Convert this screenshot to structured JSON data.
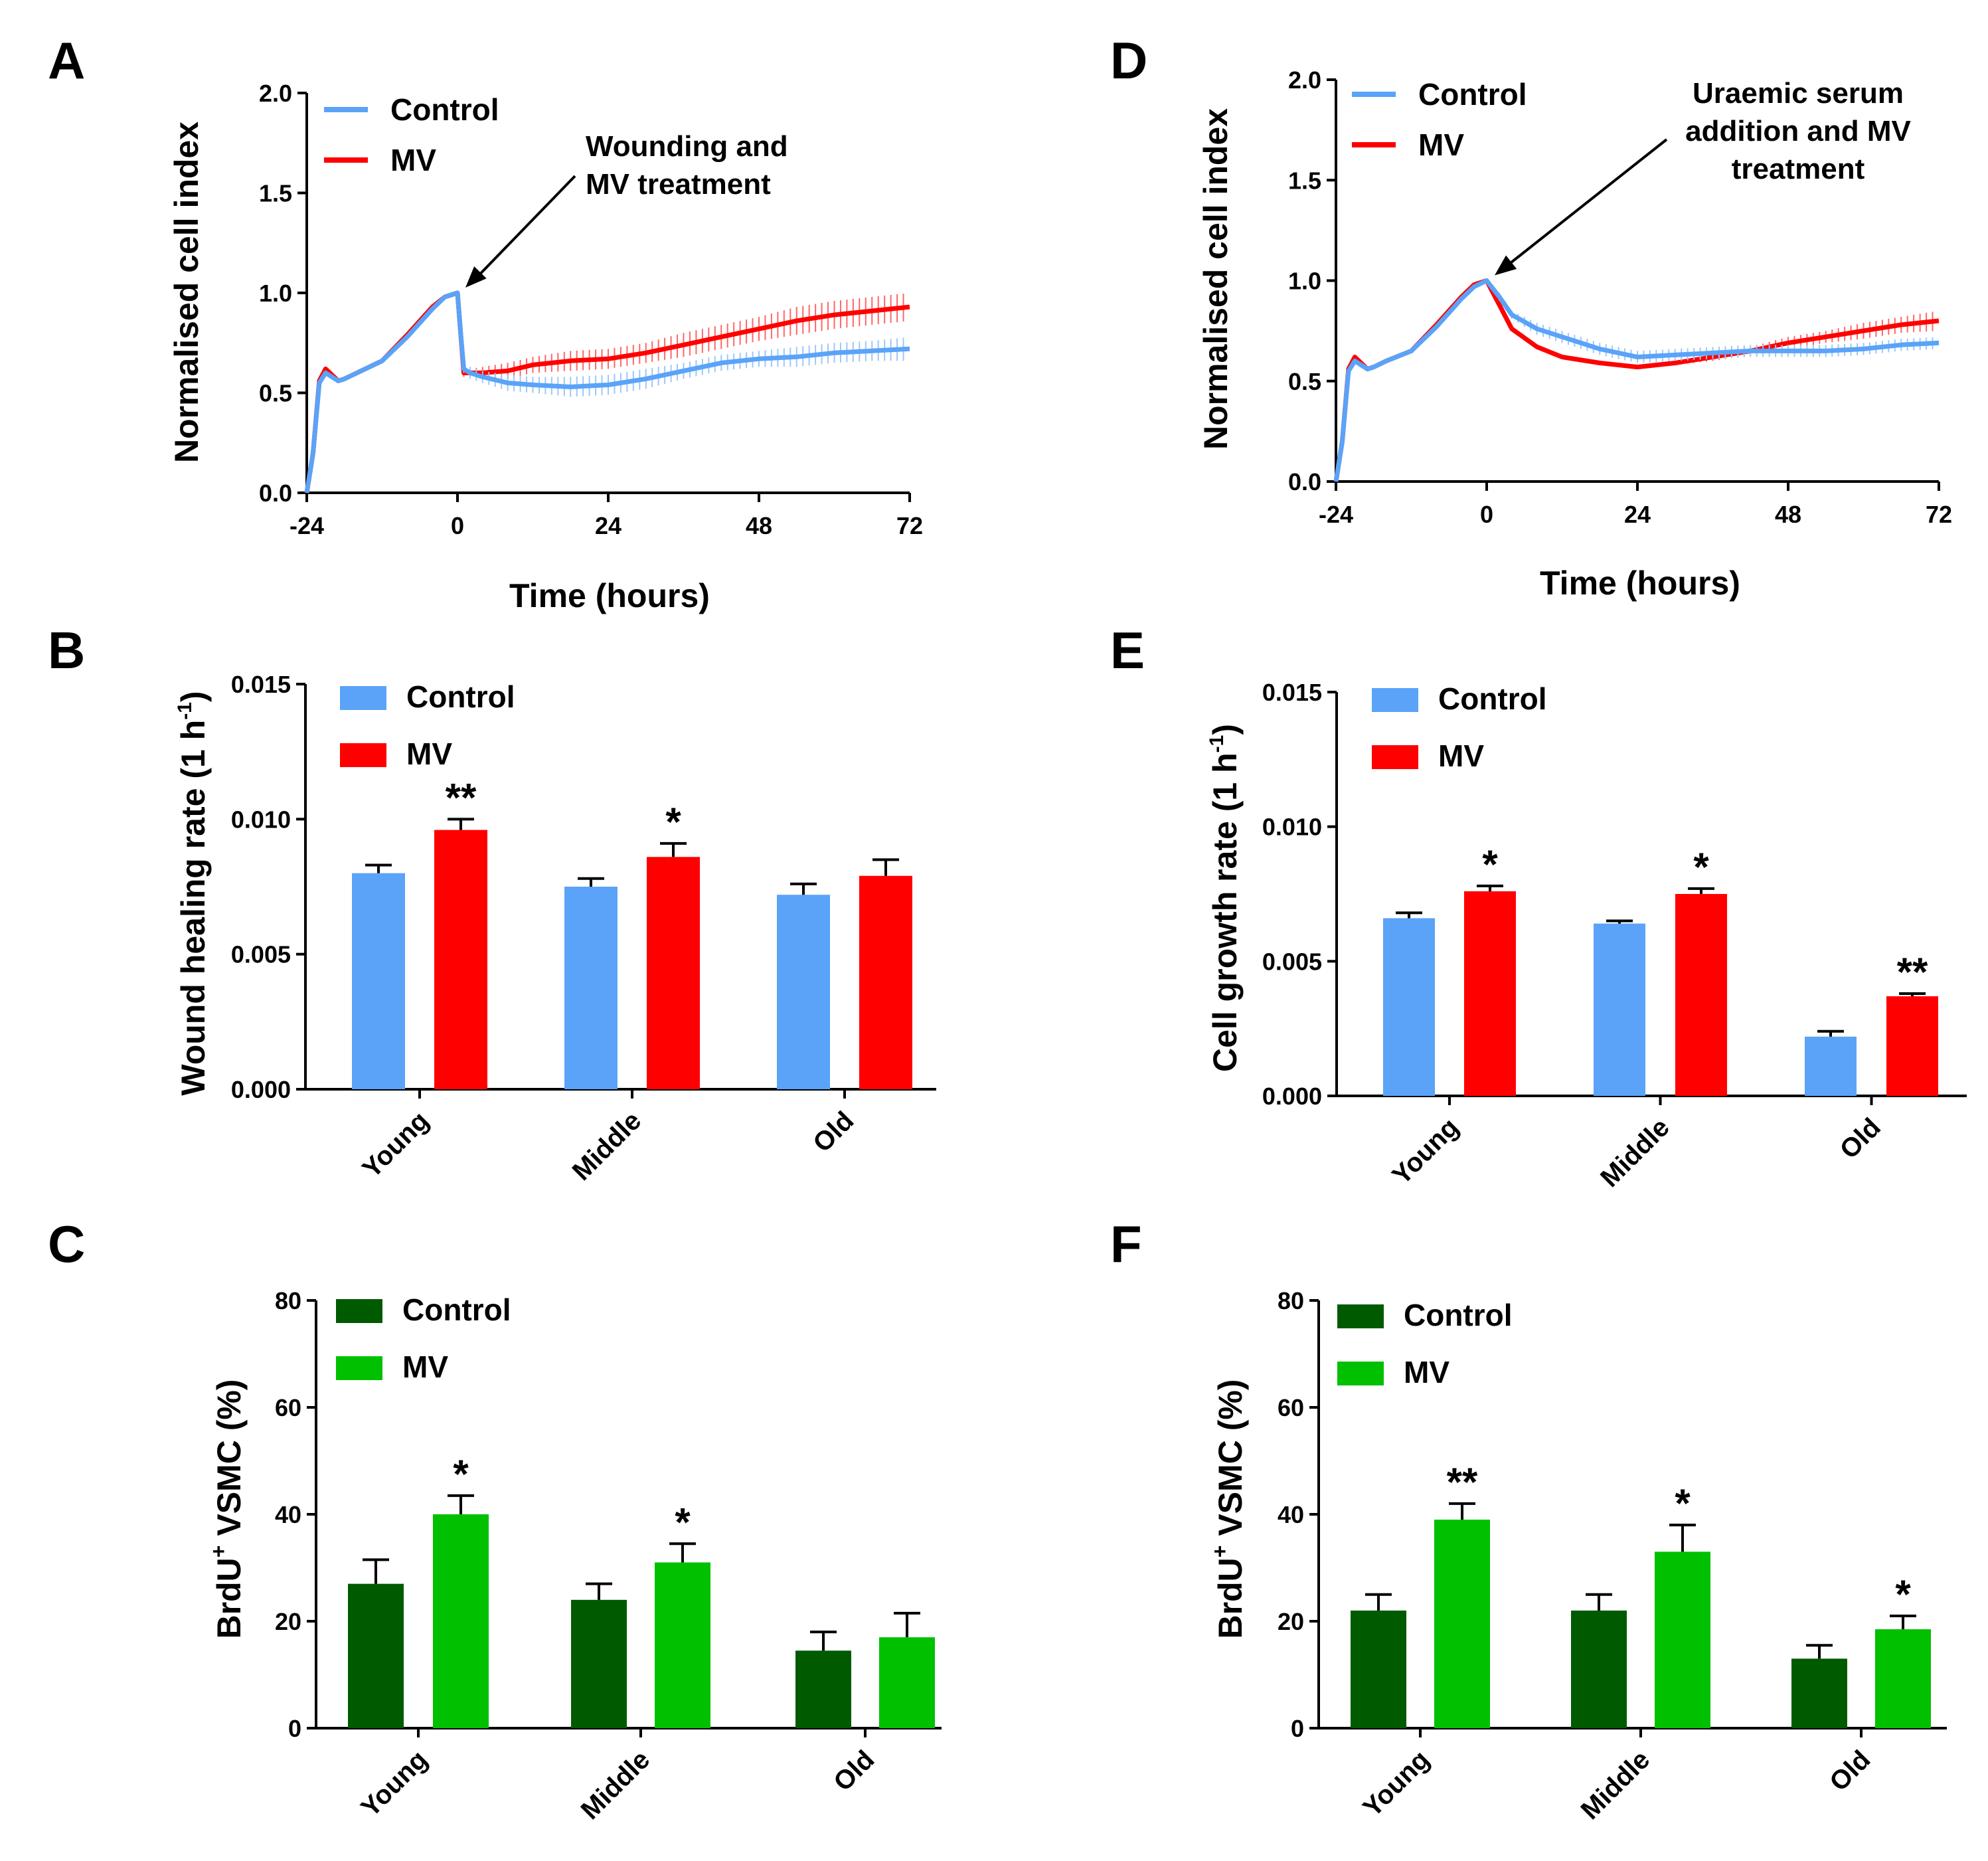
{
  "colors": {
    "control_line": "#5aa3f8",
    "mv_line": "#ff0000",
    "control_bar_blue": "#5aa3f8",
    "mv_bar_red": "#ff0000",
    "control_bar_green": "#005a00",
    "mv_bar_green": "#00c000"
  },
  "chart_data": [
    {
      "id": "A",
      "panel_label": "A",
      "type": "line",
      "title": "",
      "xlabel": "Time (hours)",
      "ylabel": "Normalised cell index",
      "xlim": [
        -24,
        72
      ],
      "ylim": [
        0,
        2.0
      ],
      "xticks": [
        -24,
        0,
        24,
        48,
        72
      ],
      "xtick_labels": [
        "-24",
        "0",
        "24",
        "48",
        "72"
      ],
      "yticks": [
        0,
        0.5,
        1.0,
        1.5,
        2.0
      ],
      "ytick_labels": [
        "0.0",
        "0.5",
        "1.0",
        "1.5",
        "2.0"
      ],
      "legend": "top-left",
      "annotation": {
        "lines": [
          "Wounding and",
          "MV treatment"
        ],
        "points_to": [
          0,
          1.0
        ]
      },
      "series": [
        {
          "name": "Control",
          "x": [
            -24,
            -23,
            -22,
            -21,
            -20,
            -19,
            -18,
            -16,
            -12,
            -8,
            -4,
            -2,
            0,
            0.5,
            1,
            2,
            4,
            8,
            12,
            18,
            24,
            30,
            36,
            42,
            48,
            54,
            60,
            66,
            72
          ],
          "y": [
            0.0,
            0.2,
            0.55,
            0.6,
            0.58,
            0.56,
            0.57,
            0.6,
            0.66,
            0.78,
            0.92,
            0.98,
            1.0,
            0.8,
            0.62,
            0.6,
            0.58,
            0.55,
            0.54,
            0.53,
            0.54,
            0.57,
            0.61,
            0.65,
            0.67,
            0.68,
            0.7,
            0.71,
            0.72
          ],
          "error": [
            0,
            0,
            0,
            0,
            0,
            0,
            0,
            0,
            0,
            0,
            0,
            0,
            0,
            0.01,
            0.02,
            0.03,
            0.03,
            0.04,
            0.04,
            0.05,
            0.05,
            0.05,
            0.04,
            0.04,
            0.04,
            0.05,
            0.05,
            0.05,
            0.06
          ]
        },
        {
          "name": "MV",
          "x": [
            -24,
            -23,
            -22,
            -21,
            -20,
            -19,
            -18,
            -16,
            -12,
            -8,
            -4,
            -2,
            0,
            0.5,
            1,
            2,
            4,
            8,
            12,
            18,
            24,
            30,
            36,
            42,
            48,
            54,
            60,
            66,
            72
          ],
          "y": [
            0.0,
            0.2,
            0.56,
            0.62,
            0.59,
            0.56,
            0.57,
            0.6,
            0.66,
            0.79,
            0.93,
            0.98,
            1.0,
            0.8,
            0.6,
            0.6,
            0.6,
            0.61,
            0.64,
            0.66,
            0.67,
            0.7,
            0.74,
            0.78,
            0.82,
            0.86,
            0.89,
            0.91,
            0.93
          ],
          "error": [
            0,
            0,
            0,
            0,
            0,
            0,
            0,
            0,
            0,
            0,
            0,
            0,
            0,
            0.01,
            0.02,
            0.02,
            0.03,
            0.04,
            0.04,
            0.05,
            0.05,
            0.05,
            0.06,
            0.06,
            0.06,
            0.07,
            0.07,
            0.07,
            0.07
          ]
        }
      ]
    },
    {
      "id": "D",
      "panel_label": "D",
      "type": "line",
      "title": "",
      "xlabel": "Time (hours)",
      "ylabel": "Normalised cell index",
      "xlim": [
        -24,
        72
      ],
      "ylim": [
        0,
        2.0
      ],
      "xticks": [
        -24,
        0,
        24,
        48,
        72
      ],
      "xtick_labels": [
        "-24",
        "0",
        "24",
        "48",
        "72"
      ],
      "yticks": [
        0,
        0.5,
        1.0,
        1.5,
        2.0
      ],
      "ytick_labels": [
        "0.0",
        "0.5",
        "1.0",
        "1.5",
        "2.0"
      ],
      "legend": "top-left",
      "annotation": {
        "lines": [
          "Uraemic serum",
          "addition and MV",
          "treatment"
        ],
        "points_to": [
          0,
          1.0
        ]
      },
      "series": [
        {
          "name": "Control",
          "x": [
            -24,
            -23,
            -22,
            -21,
            -20,
            -19,
            -18,
            -16,
            -12,
            -8,
            -4,
            -2,
            0,
            2,
            4,
            8,
            12,
            18,
            24,
            30,
            36,
            42,
            48,
            54,
            60,
            66,
            72
          ],
          "y": [
            0.0,
            0.2,
            0.55,
            0.6,
            0.58,
            0.56,
            0.57,
            0.6,
            0.65,
            0.77,
            0.91,
            0.97,
            1.0,
            0.92,
            0.83,
            0.76,
            0.72,
            0.66,
            0.62,
            0.63,
            0.64,
            0.65,
            0.65,
            0.65,
            0.66,
            0.68,
            0.69
          ],
          "error": [
            0,
            0,
            0,
            0,
            0,
            0,
            0,
            0,
            0,
            0,
            0,
            0,
            0,
            0.02,
            0.02,
            0.03,
            0.03,
            0.03,
            0.03,
            0.03,
            0.03,
            0.03,
            0.03,
            0.03,
            0.03,
            0.03,
            0.03
          ]
        },
        {
          "name": "MV",
          "x": [
            -24,
            -23,
            -22,
            -21,
            -20,
            -19,
            -18,
            -16,
            -12,
            -8,
            -4,
            -2,
            0,
            2,
            4,
            8,
            12,
            18,
            24,
            30,
            36,
            42,
            48,
            54,
            60,
            66,
            72
          ],
          "y": [
            0.0,
            0.2,
            0.56,
            0.62,
            0.59,
            0.56,
            0.57,
            0.6,
            0.65,
            0.78,
            0.92,
            0.98,
            1.0,
            0.88,
            0.76,
            0.67,
            0.62,
            0.59,
            0.57,
            0.59,
            0.62,
            0.65,
            0.69,
            0.72,
            0.75,
            0.78,
            0.8
          ],
          "error": [
            0,
            0,
            0,
            0,
            0,
            0,
            0,
            0,
            0,
            0,
            0,
            0,
            0,
            0.01,
            0.01,
            0.01,
            0.01,
            0.01,
            0.01,
            0.01,
            0.02,
            0.02,
            0.03,
            0.03,
            0.04,
            0.04,
            0.05
          ]
        }
      ]
    },
    {
      "id": "B",
      "panel_label": "B",
      "type": "bar",
      "title": "",
      "xlabel": "",
      "ylabel_parts": [
        "Wound healing rate (1 h",
        "-1",
        ")"
      ],
      "categories": [
        "Young",
        "Middle",
        "Old"
      ],
      "ylim": [
        0,
        0.015
      ],
      "yticks": [
        0,
        0.005,
        0.01,
        0.015
      ],
      "ytick_labels": [
        "0.000",
        "0.005",
        "0.010",
        "0.015"
      ],
      "legend": "top-left",
      "series": [
        {
          "name": "Control",
          "values": [
            0.008,
            0.0075,
            0.0072
          ],
          "errors": [
            0.0003,
            0.0003,
            0.0004
          ],
          "significance": [
            "",
            "",
            ""
          ]
        },
        {
          "name": "MV",
          "values": [
            0.0096,
            0.0086,
            0.0079
          ],
          "errors": [
            0.0004,
            0.0005,
            0.0006
          ],
          "significance": [
            "**",
            "*",
            ""
          ]
        }
      ]
    },
    {
      "id": "E",
      "panel_label": "E",
      "type": "bar",
      "title": "",
      "xlabel": "",
      "ylabel_parts": [
        "Cell growth rate (1 h",
        "-1",
        ")"
      ],
      "categories": [
        "Young",
        "Middle",
        "Old"
      ],
      "ylim": [
        0,
        0.015
      ],
      "yticks": [
        0,
        0.005,
        0.01,
        0.015
      ],
      "ytick_labels": [
        "0.000",
        "0.005",
        "0.010",
        "0.015"
      ],
      "legend": "top-left",
      "series": [
        {
          "name": "Control",
          "values": [
            0.0066,
            0.0064,
            0.0022
          ],
          "errors": [
            0.0002,
            0.0001,
            0.0002
          ],
          "significance": [
            "",
            "",
            ""
          ]
        },
        {
          "name": "MV",
          "values": [
            0.0076,
            0.0075,
            0.0037
          ],
          "errors": [
            0.0002,
            0.0002,
            0.0001
          ],
          "significance": [
            "*",
            "*",
            "**"
          ]
        }
      ]
    },
    {
      "id": "C",
      "panel_label": "C",
      "type": "bar",
      "title": "",
      "xlabel": "",
      "ylabel_parts": [
        "BrdU",
        "+",
        " VSMC  (%)"
      ],
      "categories": [
        "Young",
        "Middle",
        "Old"
      ],
      "ylim": [
        0,
        80
      ],
      "yticks": [
        0,
        20,
        40,
        60,
        80
      ],
      "ytick_labels": [
        "0",
        "20",
        "40",
        "60",
        "80"
      ],
      "legend": "top-left",
      "series": [
        {
          "name": "Control",
          "values": [
            27,
            24,
            14.5
          ],
          "errors": [
            4.5,
            3,
            3.5
          ],
          "significance": [
            "",
            "",
            ""
          ]
        },
        {
          "name": "MV",
          "values": [
            40,
            31,
            17
          ],
          "errors": [
            3.5,
            3.5,
            4.5
          ],
          "significance": [
            "*",
            "*",
            ""
          ]
        }
      ]
    },
    {
      "id": "F",
      "panel_label": "F",
      "type": "bar",
      "title": "",
      "xlabel": "",
      "ylabel_parts": [
        "BrdU",
        "+",
        " VSMC  (%)"
      ],
      "categories": [
        "Young",
        "Middle",
        "Old"
      ],
      "ylim": [
        0,
        80
      ],
      "yticks": [
        0,
        20,
        40,
        60,
        80
      ],
      "ytick_labels": [
        "0",
        "20",
        "40",
        "60",
        "80"
      ],
      "legend": "top-left",
      "series": [
        {
          "name": "Control",
          "values": [
            22,
            22,
            13
          ],
          "errors": [
            3,
            3,
            2.5
          ],
          "significance": [
            "",
            "",
            ""
          ]
        },
        {
          "name": "MV",
          "values": [
            39,
            33,
            18.5
          ],
          "errors": [
            3,
            5,
            2.5
          ],
          "significance": [
            "**",
            "*",
            "*"
          ]
        }
      ]
    }
  ]
}
